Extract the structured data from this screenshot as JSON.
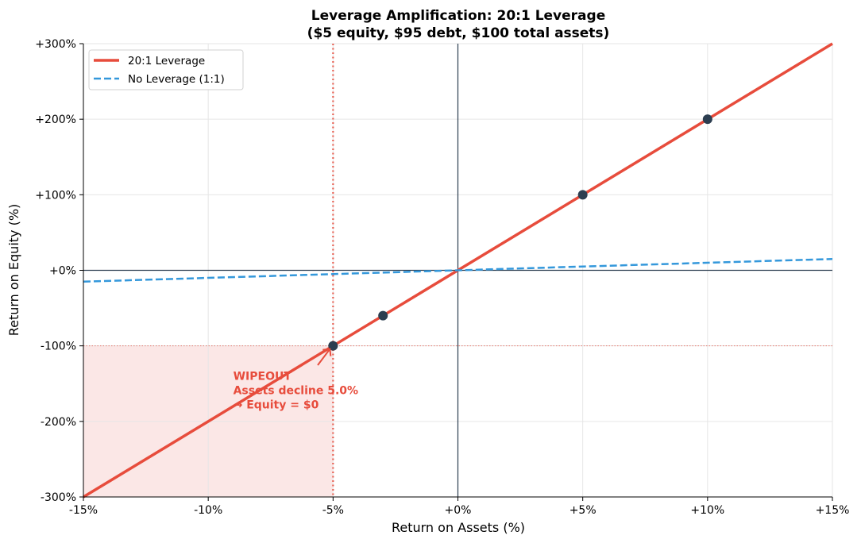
{
  "chart_data": {
    "type": "line",
    "title": "Leverage Amplification: 20:1 Leverage",
    "subtitle": "($5 equity, $95 debt, $100 total assets)",
    "xlabel": "Return on Assets (%)",
    "ylabel": "Return on Equity (%)",
    "xlim": [
      -15,
      15
    ],
    "ylim": [
      -300,
      300
    ],
    "xticks": [
      -15,
      -10,
      -5,
      0,
      5,
      10,
      15
    ],
    "xtick_labels": [
      "-15%",
      "-10%",
      "-5%",
      "+0%",
      "+5%",
      "+10%",
      "+15%"
    ],
    "yticks": [
      300,
      200,
      100,
      0,
      -100,
      -200,
      -300
    ],
    "ytick_labels": [
      "+300%",
      "+200%",
      "+100%",
      "+0%",
      "-100%",
      "-200%",
      "-300%"
    ],
    "grid": true,
    "legend_position": "upper left",
    "series": [
      {
        "name": "20:1 Leverage",
        "style": "solid",
        "color": "#e74c3c",
        "x": [
          -15,
          15
        ],
        "y": [
          -300,
          300
        ]
      },
      {
        "name": "No Leverage (1:1)",
        "style": "dashed",
        "color": "#3498db",
        "x": [
          -15,
          15
        ],
        "y": [
          -15,
          15
        ]
      }
    ],
    "markers": {
      "color": "#2c3e50",
      "points": [
        {
          "x": -5,
          "y": -100
        },
        {
          "x": -3,
          "y": -60
        },
        {
          "x": 5,
          "y": 100
        },
        {
          "x": 10,
          "y": 200
        }
      ]
    },
    "reference_lines": {
      "wipeout_x": -5,
      "wipeout_y": -100,
      "color": "#e74c3c"
    },
    "shaded_region": {
      "x": [
        -15,
        -5
      ],
      "y": [
        -300,
        -100
      ],
      "color": "#fadbd8"
    },
    "annotation": {
      "lines": [
        "WIPEOUT",
        "Assets decline 5.0%",
        "→ Equity = $0"
      ],
      "arrow_to": {
        "x": -5,
        "y": -100
      },
      "text_at": {
        "x": -9,
        "y": -140
      }
    }
  }
}
